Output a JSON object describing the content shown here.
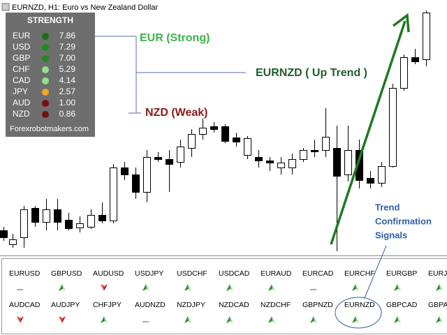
{
  "header": {
    "title": "EURNZD, H1:  Euro vs New Zealand Dollar"
  },
  "strength": {
    "title": "STRENGTH",
    "rows": [
      [
        "EUR",
        "7.86"
      ],
      [
        "USD",
        "7.29"
      ],
      [
        "GBP",
        "7.00"
      ],
      [
        "CHF",
        "5.29"
      ],
      [
        "CAD",
        "4.14"
      ],
      [
        "JPY",
        "2.57"
      ],
      [
        "AUD",
        "1.00"
      ],
      [
        "NZD",
        "0.86"
      ]
    ],
    "footer": "Forexrobotmakers.com"
  },
  "annotations": {
    "strong": "EUR (Strong)",
    "trend": "EURNZD ( Up Trend )",
    "weak": "NZD (Weak)",
    "signals": [
      "Trend",
      "Confirmation",
      "Signals"
    ]
  },
  "pairs": [
    [
      "EURUSD",
      "GBPUSD",
      "AUDUSD",
      "USDJPY",
      "USDCHF",
      "USDCAD",
      "EURAUD",
      "EURCAD",
      "EURCHF",
      "EURGBP",
      "EURJ"
    ],
    [
      "AUDCAD",
      "AUDJPY",
      "CHFJPY",
      "AUDNZD",
      "NZDJPY",
      "NZDCAD",
      "NZDCHF",
      "GBPNZD",
      "EURNZD",
      "GBPCAD",
      "GBPA"
    ]
  ]
}
